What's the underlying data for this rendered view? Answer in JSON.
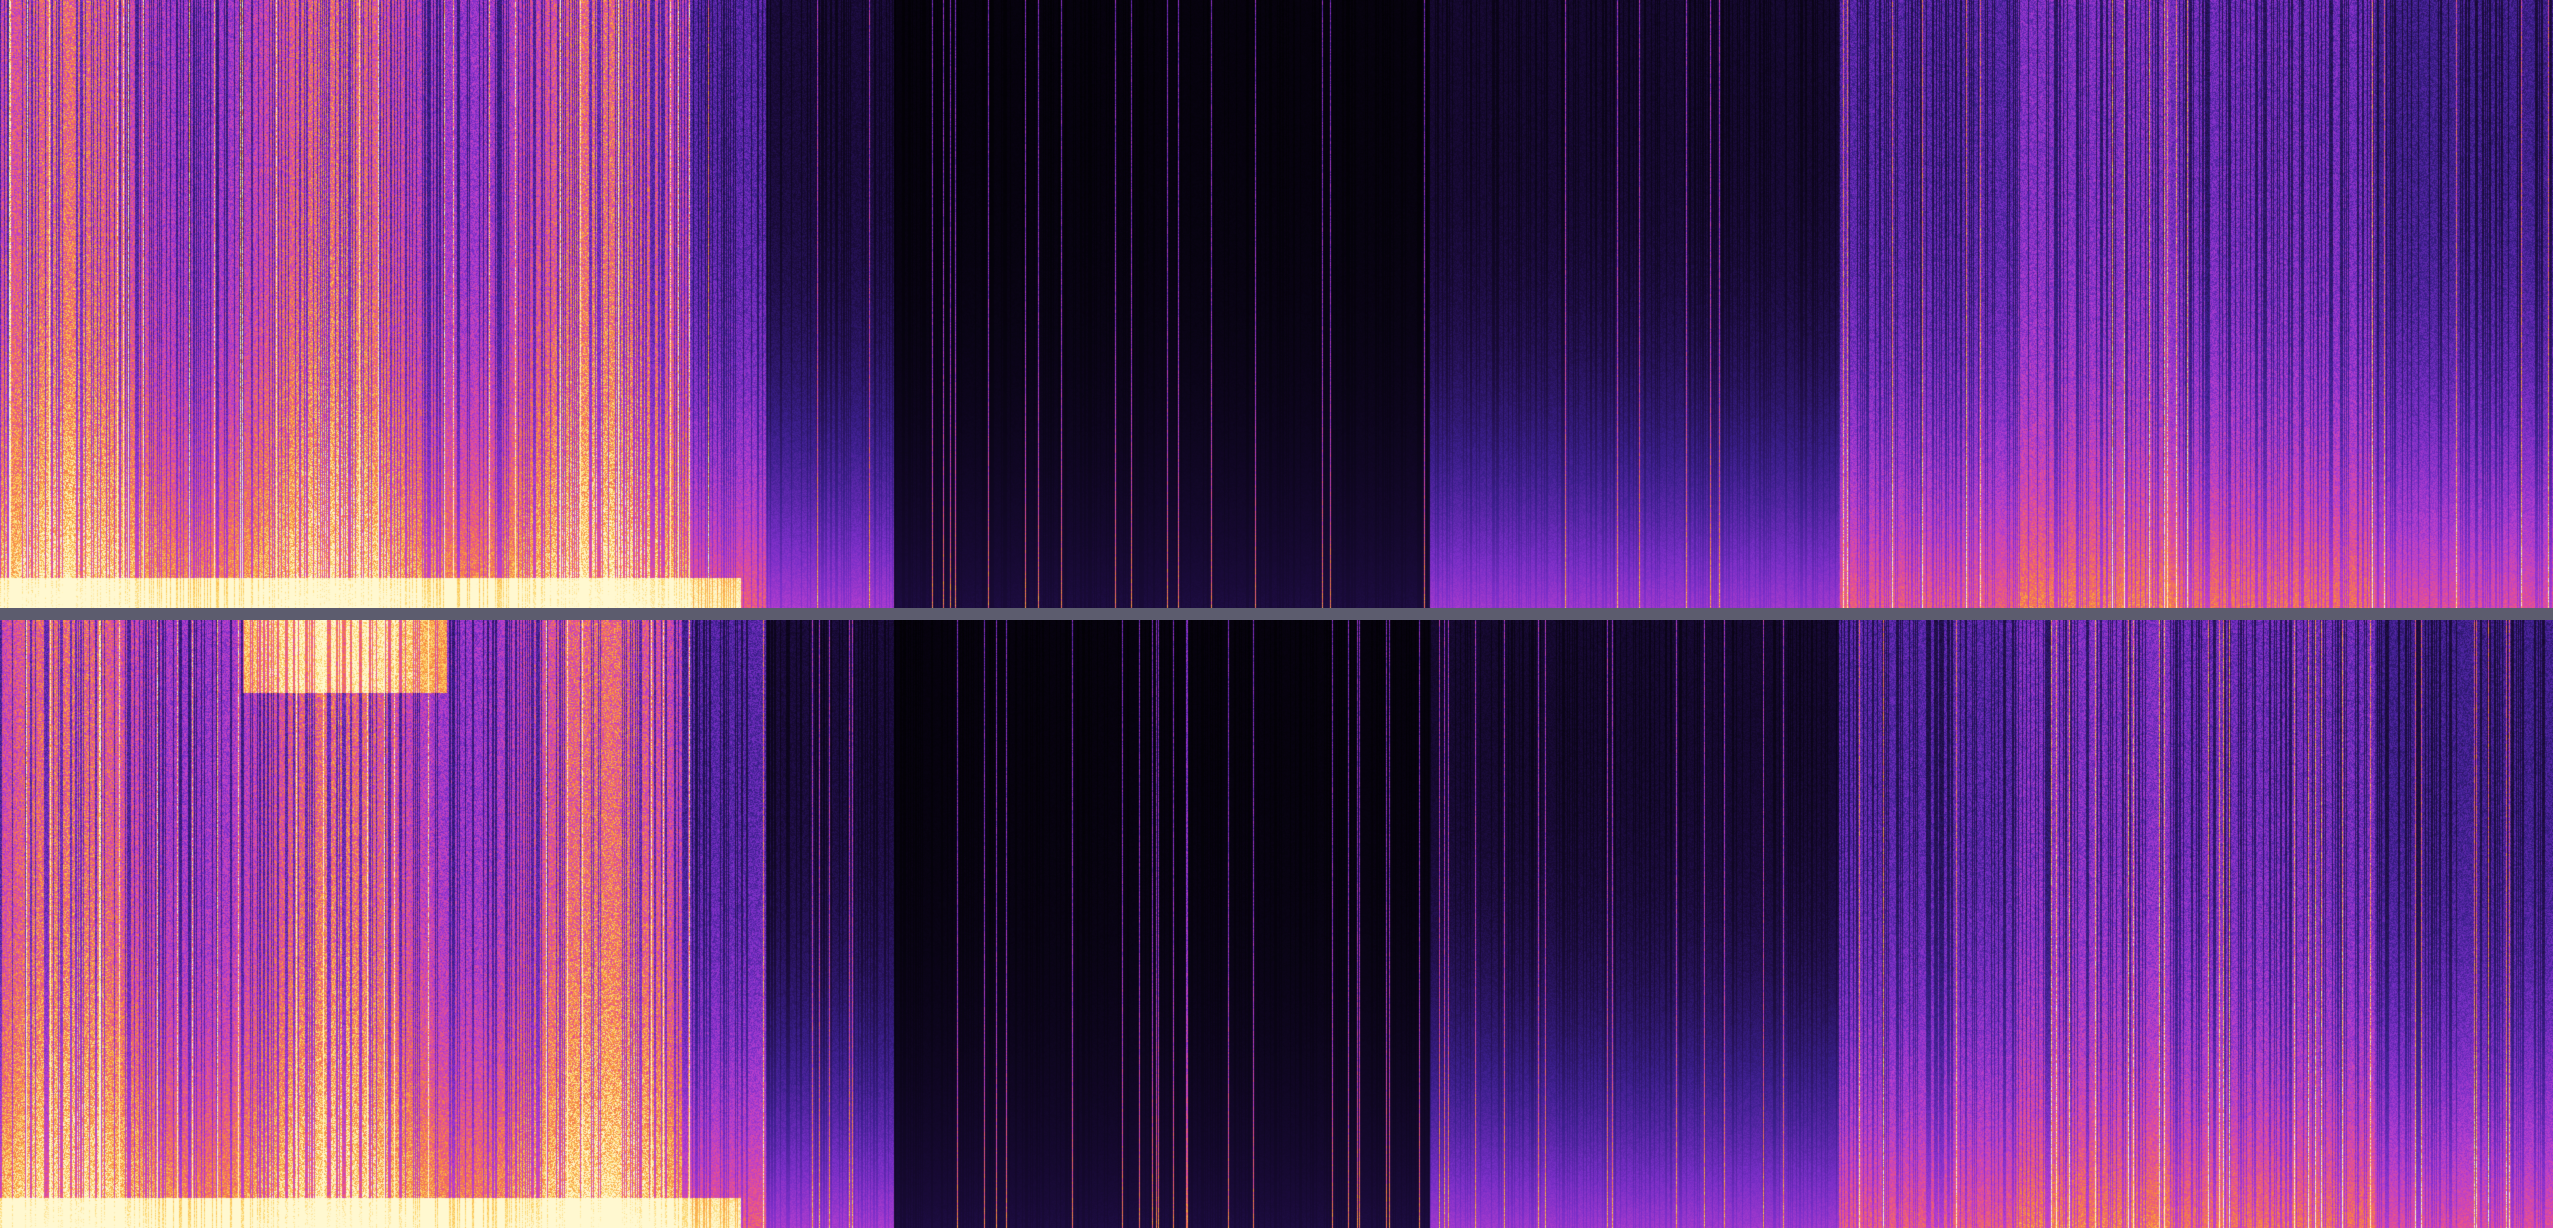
{
  "view": "spectrogram",
  "channels": [
    {
      "id": "channel-1"
    },
    {
      "id": "channel-2"
    }
  ],
  "colormap": [
    "#000000",
    "#1a0b3a",
    "#3b1f8c",
    "#7a2fc8",
    "#b83fd0",
    "#e8508f",
    "#f8883a",
    "#fbd060",
    "#fff8d0"
  ],
  "divider_color": "#5c5c6e"
}
